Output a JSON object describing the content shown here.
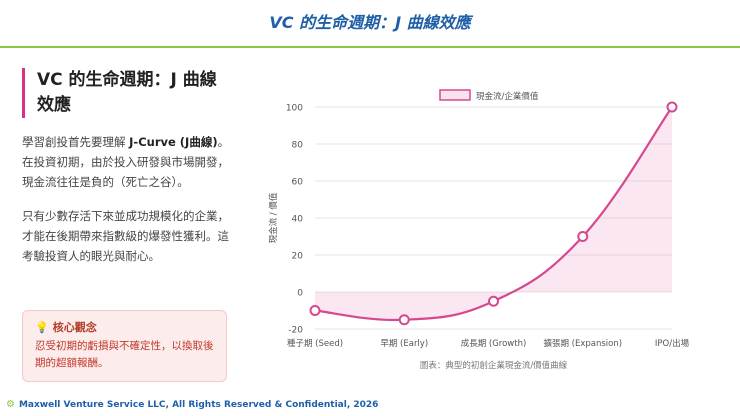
{
  "header": {
    "title": "VC 的生命週期：J 曲線效應"
  },
  "left": {
    "heading": "VC 的生命週期：J 曲線效應",
    "p1_pre": "學習創投首先要理解 ",
    "p1_bold": "J-Curve (J曲線)",
    "p1_post": "。在投資初期，由於投入研發與市場開發，現金流往往是負的（死亡之谷）。",
    "p2": "只有少數存活下來並成功規模化的企業，才能在後期帶來指數級的爆發性獲利。這考驗投資人的眼光與耐心。"
  },
  "callout": {
    "icon": "lightbulb-icon",
    "title": "核心觀念",
    "body": "忍受初期的虧損與不確定性，以換取後期的超額報酬。"
  },
  "footer": {
    "text": "Maxwell Venture Service LLC, All Rights Reserved & Confidential, 2026"
  },
  "chart_data": {
    "type": "area",
    "categories": [
      "種子期 (Seed)",
      "早期 (Early)",
      "成長期 (Growth)",
      "擴張期 (Expansion)",
      "IPO/出場"
    ],
    "series": [
      {
        "name": "現金流/企業價值",
        "values": [
          -10,
          -15,
          -5,
          30,
          100
        ],
        "color": "#d6488f"
      }
    ],
    "ylabel": "現金流 / 價值",
    "caption": "圖表：典型的初創企業現金流/價值曲線",
    "ylim": [
      -20,
      100
    ],
    "yticks": [
      -20,
      0,
      20,
      40,
      60,
      80,
      100
    ],
    "legend": "top"
  }
}
